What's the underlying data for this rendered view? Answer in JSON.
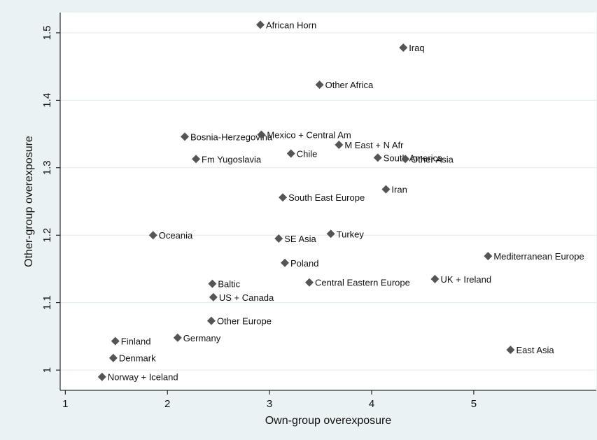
{
  "chart_data": {
    "type": "scatter",
    "xlabel": "Own-group overexposure",
    "ylabel": "Other-group overexposure",
    "xlim": [
      0.95,
      6.2
    ],
    "ylim": [
      0.97,
      1.53
    ],
    "xticks": [
      "1",
      "2",
      "3",
      "4",
      "5"
    ],
    "yticks": [
      "1",
      "1.1",
      "1.2",
      "1.3",
      "1.4",
      "1.5"
    ],
    "grid": "horizontal",
    "marker_color": "#555555",
    "points": [
      {
        "label": "African Horn",
        "x": 2.91,
        "y": 1.512
      },
      {
        "label": "Iraq",
        "x": 4.31,
        "y": 1.478
      },
      {
        "label": "Other Africa",
        "x": 3.49,
        "y": 1.423
      },
      {
        "label": "Bosnia-Herzegovina",
        "x": 2.17,
        "y": 1.346
      },
      {
        "label": "Mexico + Central Am",
        "x": 2.92,
        "y": 1.349
      },
      {
        "label": "M East + N Afr",
        "x": 3.68,
        "y": 1.334
      },
      {
        "label": "Chile",
        "x": 3.21,
        "y": 1.321
      },
      {
        "label": "South America",
        "x": 4.06,
        "y": 1.315
      },
      {
        "label": "Other Asia",
        "x": 4.33,
        "y": 1.313
      },
      {
        "label": "Fm Yugoslavia",
        "x": 2.28,
        "y": 1.313
      },
      {
        "label": "Iran",
        "x": 4.14,
        "y": 1.268
      },
      {
        "label": "South East Europe",
        "x": 3.13,
        "y": 1.256
      },
      {
        "label": "Oceania",
        "x": 1.86,
        "y": 1.2
      },
      {
        "label": "Turkey",
        "x": 3.6,
        "y": 1.202
      },
      {
        "label": "SE Asia",
        "x": 3.09,
        "y": 1.195
      },
      {
        "label": "Mediterranean Europe",
        "x": 5.14,
        "y": 1.169
      },
      {
        "label": "Poland",
        "x": 3.15,
        "y": 1.159
      },
      {
        "label": "UK + Ireland",
        "x": 4.62,
        "y": 1.135
      },
      {
        "label": "Central Eastern Europe",
        "x": 3.39,
        "y": 1.13
      },
      {
        "label": "Baltic",
        "x": 2.44,
        "y": 1.128
      },
      {
        "label": "US + Canada",
        "x": 2.45,
        "y": 1.108
      },
      {
        "label": "Other Europe",
        "x": 2.43,
        "y": 1.073
      },
      {
        "label": "Germany",
        "x": 2.1,
        "y": 1.048
      },
      {
        "label": "Finland",
        "x": 1.49,
        "y": 1.043
      },
      {
        "label": "East Asia",
        "x": 5.36,
        "y": 1.03
      },
      {
        "label": "Denmark",
        "x": 1.47,
        "y": 1.018
      },
      {
        "label": "Norway + Iceland",
        "x": 1.36,
        "y": 0.99
      }
    ]
  }
}
